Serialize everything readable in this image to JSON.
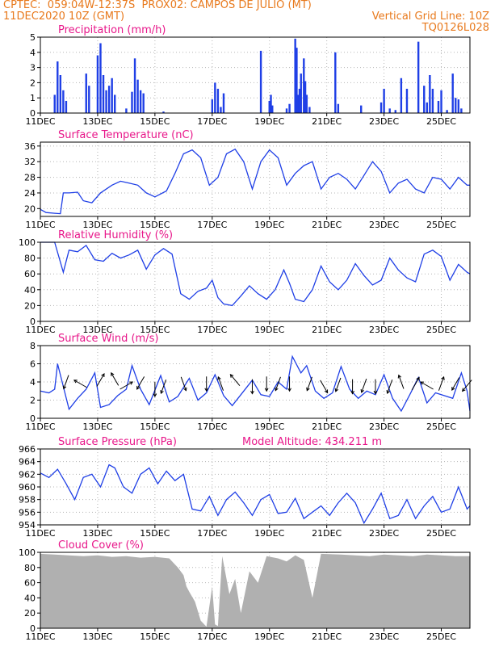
{
  "header": {
    "line1": "CPTEC:  059:04W-12:37S  PROX02: CAMPOS DE JULIO (MT)",
    "line2_left": "11DEC2020 10Z (GMT)",
    "line2_right": "Vertical Grid Line: 10Z",
    "line3_right": "TQ0126L028",
    "model_altitude": "Model Altitude: 434.211 m"
  },
  "colors": {
    "header": "#e8791c",
    "panel_title": "#e8178a",
    "series_line": "#1f3fe6",
    "precip_bars": "#1f3fe6",
    "cloud_fill": "#b0b0b0",
    "wind_arrows": "#000000"
  },
  "x_axis": {
    "tick_labels": [
      "11DEC",
      "13DEC",
      "15DEC",
      "17DEC",
      "19DEC",
      "21DEC",
      "23DEC",
      "25DEC"
    ],
    "start_label": "11DEC2020 10Z",
    "end_day_offset": 15.0,
    "vertical_grid": "10Z each 2 days"
  },
  "chart_data": [
    {
      "type": "bar",
      "title": "Precipitation (mm/h)",
      "ylim": [
        0,
        5
      ],
      "yticks": [
        0,
        1,
        2,
        3,
        4,
        5
      ],
      "x_unit": "days since 11DEC 10Z",
      "x": [
        0.5,
        0.6,
        0.7,
        0.8,
        0.9,
        1.6,
        1.7,
        2.0,
        2.1,
        2.2,
        2.3,
        2.4,
        2.5,
        2.6,
        3.0,
        3.2,
        3.3,
        3.4,
        3.5,
        3.6,
        4.3,
        6.0,
        6.1,
        6.2,
        6.3,
        6.4,
        7.7,
        8.0,
        8.05,
        8.1,
        8.6,
        8.7,
        8.9,
        8.95,
        9.0,
        9.05,
        9.1,
        9.2,
        9.25,
        9.3,
        9.4,
        10.3,
        10.4,
        11.2,
        11.9,
        12.0,
        12.2,
        12.4,
        12.6,
        12.8,
        13.2,
        13.4,
        13.5,
        13.6,
        13.7,
        13.9,
        14.0,
        14.2,
        14.4,
        14.5,
        14.6,
        14.7
      ],
      "values": [
        1.2,
        3.4,
        2.5,
        1.5,
        0.8,
        2.6,
        1.8,
        3.8,
        4.6,
        2.5,
        1.5,
        1.8,
        2.3,
        1.2,
        0.3,
        1.4,
        3.6,
        2.2,
        1.5,
        1.3,
        0.1,
        0.9,
        2.0,
        1.6,
        0.4,
        1.3,
        4.1,
        0.8,
        1.2,
        0.5,
        0.3,
        0.6,
        4.9,
        4.3,
        1.2,
        1.6,
        2.6,
        3.6,
        2.1,
        1.2,
        0.4,
        4.0,
        0.6,
        0.5,
        0.7,
        1.6,
        0.3,
        0.2,
        2.3,
        1.6,
        4.7,
        1.8,
        0.7,
        2.5,
        1.6,
        0.8,
        1.5,
        0.2,
        2.6,
        1.0,
        0.9,
        0.3
      ]
    },
    {
      "type": "line",
      "title": "Surface Temperature (nC)",
      "ylim": [
        18,
        37
      ],
      "yticks": [
        20,
        24,
        28,
        32,
        36
      ],
      "x_unit": "days since 11DEC 10Z",
      "points": [
        [
          0,
          19.8
        ],
        [
          0.2,
          19.0
        ],
        [
          0.5,
          18.8
        ],
        [
          0.7,
          18.7
        ],
        [
          0.8,
          24.0
        ],
        [
          1.0,
          24.0
        ],
        [
          1.3,
          24.2
        ],
        [
          1.5,
          22.0
        ],
        [
          1.8,
          21.5
        ],
        [
          2.1,
          24.0
        ],
        [
          2.5,
          26.0
        ],
        [
          2.8,
          27.0
        ],
        [
          3.1,
          26.5
        ],
        [
          3.4,
          26.0
        ],
        [
          3.7,
          24.0
        ],
        [
          4.0,
          23.0
        ],
        [
          4.4,
          24.5
        ],
        [
          4.7,
          29.0
        ],
        [
          5.0,
          34.0
        ],
        [
          5.3,
          35.0
        ],
        [
          5.6,
          33.0
        ],
        [
          5.9,
          26.0
        ],
        [
          6.2,
          28.0
        ],
        [
          6.5,
          34.0
        ],
        [
          6.8,
          35.2
        ],
        [
          7.1,
          32.0
        ],
        [
          7.4,
          25.0
        ],
        [
          7.7,
          32.0
        ],
        [
          8.0,
          35.0
        ],
        [
          8.3,
          33.0
        ],
        [
          8.6,
          26.0
        ],
        [
          8.9,
          29.0
        ],
        [
          9.2,
          31.0
        ],
        [
          9.5,
          32.0
        ],
        [
          9.8,
          25.0
        ],
        [
          10.1,
          28.0
        ],
        [
          10.4,
          29.0
        ],
        [
          10.7,
          27.5
        ],
        [
          11.0,
          25.0
        ],
        [
          11.3,
          28.5
        ],
        [
          11.6,
          32.0
        ],
        [
          11.9,
          29.5
        ],
        [
          12.2,
          24.0
        ],
        [
          12.5,
          26.5
        ],
        [
          12.8,
          27.5
        ],
        [
          13.1,
          25.0
        ],
        [
          13.4,
          24.0
        ],
        [
          13.7,
          28.0
        ],
        [
          14.0,
          27.5
        ],
        [
          14.3,
          25.0
        ],
        [
          14.6,
          28.0
        ],
        [
          14.9,
          26.0
        ],
        [
          15.0,
          26.0
        ]
      ]
    },
    {
      "type": "line",
      "title": "Relative Humidity (%)",
      "ylim": [
        0,
        100
      ],
      "yticks": [
        0,
        20,
        40,
        60,
        80,
        100
      ],
      "x_unit": "days since 11DEC 10Z",
      "points": [
        [
          0,
          100
        ],
        [
          0.5,
          100
        ],
        [
          0.8,
          62
        ],
        [
          1.0,
          90
        ],
        [
          1.3,
          88
        ],
        [
          1.6,
          96
        ],
        [
          1.9,
          78
        ],
        [
          2.2,
          76
        ],
        [
          2.5,
          86
        ],
        [
          2.8,
          80
        ],
        [
          3.1,
          84
        ],
        [
          3.4,
          90
        ],
        [
          3.7,
          66
        ],
        [
          4.0,
          84
        ],
        [
          4.3,
          92
        ],
        [
          4.6,
          85
        ],
        [
          4.9,
          35
        ],
        [
          5.2,
          28
        ],
        [
          5.5,
          38
        ],
        [
          5.8,
          42
        ],
        [
          6.0,
          52
        ],
        [
          6.2,
          30
        ],
        [
          6.4,
          22
        ],
        [
          6.7,
          20
        ],
        [
          7.0,
          32
        ],
        [
          7.3,
          45
        ],
        [
          7.6,
          35
        ],
        [
          7.9,
          28
        ],
        [
          8.2,
          40
        ],
        [
          8.5,
          65
        ],
        [
          8.7,
          48
        ],
        [
          8.9,
          28
        ],
        [
          9.2,
          25
        ],
        [
          9.5,
          40
        ],
        [
          9.8,
          70
        ],
        [
          10.1,
          50
        ],
        [
          10.4,
          40
        ],
        [
          10.7,
          52
        ],
        [
          11.0,
          73
        ],
        [
          11.3,
          58
        ],
        [
          11.6,
          46
        ],
        [
          11.9,
          52
        ],
        [
          12.2,
          80
        ],
        [
          12.5,
          65
        ],
        [
          12.8,
          55
        ],
        [
          13.1,
          50
        ],
        [
          13.4,
          85
        ],
        [
          13.7,
          90
        ],
        [
          14.0,
          82
        ],
        [
          14.3,
          52
        ],
        [
          14.6,
          72
        ],
        [
          14.9,
          62
        ],
        [
          15.0,
          60
        ]
      ]
    },
    {
      "type": "line",
      "title": "Surface Wind (m/s)",
      "ylim": [
        0,
        8
      ],
      "yticks": [
        0,
        2,
        4,
        6,
        8
      ],
      "x_unit": "days since 11DEC 10Z",
      "points": [
        [
          0,
          3.0
        ],
        [
          0.3,
          2.8
        ],
        [
          0.5,
          3.2
        ],
        [
          0.6,
          6.0
        ],
        [
          0.8,
          3.5
        ],
        [
          1.0,
          1.0
        ],
        [
          1.3,
          2.2
        ],
        [
          1.6,
          3.2
        ],
        [
          1.9,
          5.0
        ],
        [
          2.1,
          1.2
        ],
        [
          2.4,
          1.5
        ],
        [
          2.7,
          2.5
        ],
        [
          3.0,
          3.2
        ],
        [
          3.2,
          5.8
        ],
        [
          3.5,
          3.2
        ],
        [
          3.8,
          1.5
        ],
        [
          4.2,
          4.7
        ],
        [
          4.5,
          1.8
        ],
        [
          4.8,
          2.4
        ],
        [
          5.2,
          4.4
        ],
        [
          5.5,
          2.0
        ],
        [
          5.8,
          2.8
        ],
        [
          6.1,
          4.8
        ],
        [
          6.4,
          2.5
        ],
        [
          6.7,
          1.4
        ],
        [
          7.0,
          2.6
        ],
        [
          7.4,
          4.2
        ],
        [
          7.7,
          2.6
        ],
        [
          8.0,
          2.4
        ],
        [
          8.3,
          4.0
        ],
        [
          8.6,
          3.2
        ],
        [
          8.8,
          6.8
        ],
        [
          9.1,
          5.0
        ],
        [
          9.3,
          5.8
        ],
        [
          9.6,
          3.0
        ],
        [
          9.9,
          2.2
        ],
        [
          10.2,
          2.8
        ],
        [
          10.5,
          5.7
        ],
        [
          10.8,
          3.2
        ],
        [
          11.1,
          2.2
        ],
        [
          11.4,
          3.0
        ],
        [
          11.7,
          2.6
        ],
        [
          12.0,
          4.8
        ],
        [
          12.3,
          2.2
        ],
        [
          12.6,
          0.8
        ],
        [
          12.9,
          2.6
        ],
        [
          13.2,
          4.5
        ],
        [
          13.5,
          1.7
        ],
        [
          13.8,
          2.8
        ],
        [
          14.1,
          2.5
        ],
        [
          14.4,
          2.2
        ],
        [
          14.7,
          5.0
        ],
        [
          14.9,
          3.0
        ],
        [
          15.0,
          0.8
        ]
      ]
    },
    {
      "type": "line",
      "title": "Surface Pressure (hPa)",
      "ylim": [
        954,
        966
      ],
      "yticks": [
        954,
        956,
        958,
        960,
        962,
        964,
        966
      ],
      "x_unit": "days since 11DEC 10Z",
      "points": [
        [
          0,
          962.2
        ],
        [
          0.3,
          961.5
        ],
        [
          0.6,
          962.8
        ],
        [
          0.9,
          960.5
        ],
        [
          1.2,
          958.0
        ],
        [
          1.5,
          961.5
        ],
        [
          1.8,
          962.0
        ],
        [
          2.1,
          960.0
        ],
        [
          2.4,
          963.5
        ],
        [
          2.6,
          963.0
        ],
        [
          2.9,
          960.0
        ],
        [
          3.2,
          959.0
        ],
        [
          3.5,
          962.0
        ],
        [
          3.8,
          963.0
        ],
        [
          4.1,
          960.5
        ],
        [
          4.4,
          962.5
        ],
        [
          4.7,
          961.0
        ],
        [
          5.0,
          962.0
        ],
        [
          5.3,
          956.5
        ],
        [
          5.6,
          956.2
        ],
        [
          5.9,
          958.5
        ],
        [
          6.2,
          955.5
        ],
        [
          6.5,
          958.0
        ],
        [
          6.8,
          959.2
        ],
        [
          7.1,
          957.5
        ],
        [
          7.4,
          955.5
        ],
        [
          7.7,
          958.0
        ],
        [
          8.0,
          958.8
        ],
        [
          8.3,
          955.8
        ],
        [
          8.6,
          956.0
        ],
        [
          8.9,
          958.2
        ],
        [
          9.2,
          955.0
        ],
        [
          9.5,
          956.0
        ],
        [
          9.8,
          957.0
        ],
        [
          10.1,
          955.5
        ],
        [
          10.4,
          957.5
        ],
        [
          10.7,
          959.0
        ],
        [
          11.0,
          957.5
        ],
        [
          11.3,
          954.3
        ],
        [
          11.6,
          956.5
        ],
        [
          11.9,
          959.0
        ],
        [
          12.2,
          955.0
        ],
        [
          12.5,
          955.5
        ],
        [
          12.8,
          958.0
        ],
        [
          13.1,
          955.0
        ],
        [
          13.4,
          957.0
        ],
        [
          13.7,
          958.5
        ],
        [
          14.0,
          956.0
        ],
        [
          14.3,
          956.5
        ],
        [
          14.6,
          960.0
        ],
        [
          14.9,
          956.5
        ],
        [
          15.0,
          957.0
        ]
      ]
    },
    {
      "type": "area",
      "title": "Cloud Cover (%)",
      "ylim": [
        0,
        100
      ],
      "yticks": [
        0,
        20,
        40,
        60,
        80,
        100
      ],
      "x_unit": "days since 11DEC 10Z",
      "points": [
        [
          0,
          98
        ],
        [
          0.5,
          97
        ],
        [
          1.0,
          96
        ],
        [
          1.5,
          95
        ],
        [
          2.0,
          96
        ],
        [
          2.5,
          94
        ],
        [
          3.0,
          95
        ],
        [
          3.5,
          93
        ],
        [
          4.0,
          94
        ],
        [
          4.5,
          92
        ],
        [
          4.8,
          80
        ],
        [
          5.0,
          70
        ],
        [
          5.1,
          55
        ],
        [
          5.2,
          48
        ],
        [
          5.4,
          35
        ],
        [
          5.6,
          10
        ],
        [
          5.8,
          2
        ],
        [
          6.0,
          55
        ],
        [
          6.1,
          5
        ],
        [
          6.2,
          3
        ],
        [
          6.35,
          95
        ],
        [
          6.6,
          45
        ],
        [
          6.8,
          65
        ],
        [
          7.0,
          20
        ],
        [
          7.3,
          75
        ],
        [
          7.6,
          60
        ],
        [
          7.9,
          95
        ],
        [
          8.3,
          92
        ],
        [
          8.6,
          88
        ],
        [
          8.9,
          96
        ],
        [
          9.2,
          90
        ],
        [
          9.5,
          40
        ],
        [
          9.8,
          98
        ],
        [
          10.5,
          97
        ],
        [
          11.0,
          96
        ],
        [
          11.5,
          95
        ],
        [
          12.0,
          97
        ],
        [
          12.5,
          96
        ],
        [
          13.0,
          95
        ],
        [
          13.5,
          97
        ],
        [
          14.0,
          96
        ],
        [
          14.5,
          95
        ],
        [
          15.0,
          95
        ]
      ]
    }
  ],
  "wind_arrows": [
    {
      "x": 0.9,
      "y": 4.0,
      "dir_deg": 200
    },
    {
      "x": 1.4,
      "y": 3.8,
      "dir_deg": 300
    },
    {
      "x": 2.1,
      "y": 4.2,
      "dir_deg": 30
    },
    {
      "x": 2.6,
      "y": 4.3,
      "dir_deg": 330
    },
    {
      "x": 3.0,
      "y": 3.6,
      "dir_deg": 60
    },
    {
      "x": 3.5,
      "y": 3.9,
      "dir_deg": 210
    },
    {
      "x": 4.0,
      "y": 3.2,
      "dir_deg": 180
    },
    {
      "x": 4.3,
      "y": 3.5,
      "dir_deg": 200
    },
    {
      "x": 5.0,
      "y": 3.8,
      "dir_deg": 160
    },
    {
      "x": 5.8,
      "y": 3.8,
      "dir_deg": 180
    },
    {
      "x": 6.3,
      "y": 3.8,
      "dir_deg": 340
    },
    {
      "x": 6.8,
      "y": 4.2,
      "dir_deg": 320
    },
    {
      "x": 7.4,
      "y": 3.5,
      "dir_deg": 180
    },
    {
      "x": 7.9,
      "y": 3.8,
      "dir_deg": 180
    },
    {
      "x": 8.3,
      "y": 3.8,
      "dir_deg": 200
    },
    {
      "x": 8.7,
      "y": 3.8,
      "dir_deg": 180
    },
    {
      "x": 9.4,
      "y": 3.8,
      "dir_deg": 200
    },
    {
      "x": 9.9,
      "y": 3.5,
      "dir_deg": 150
    },
    {
      "x": 10.4,
      "y": 3.7,
      "dir_deg": 200
    },
    {
      "x": 10.9,
      "y": 3.5,
      "dir_deg": 180
    },
    {
      "x": 11.3,
      "y": 3.6,
      "dir_deg": 200
    },
    {
      "x": 11.7,
      "y": 3.5,
      "dir_deg": 180
    },
    {
      "x": 12.2,
      "y": 3.5,
      "dir_deg": 200
    },
    {
      "x": 12.6,
      "y": 4.0,
      "dir_deg": 340
    },
    {
      "x": 13.1,
      "y": 3.8,
      "dir_deg": 30
    },
    {
      "x": 13.5,
      "y": 3.6,
      "dir_deg": 300
    },
    {
      "x": 14.0,
      "y": 3.8,
      "dir_deg": 20
    },
    {
      "x": 14.5,
      "y": 3.8,
      "dir_deg": 210
    },
    {
      "x": 14.9,
      "y": 3.6,
      "dir_deg": 220
    }
  ]
}
